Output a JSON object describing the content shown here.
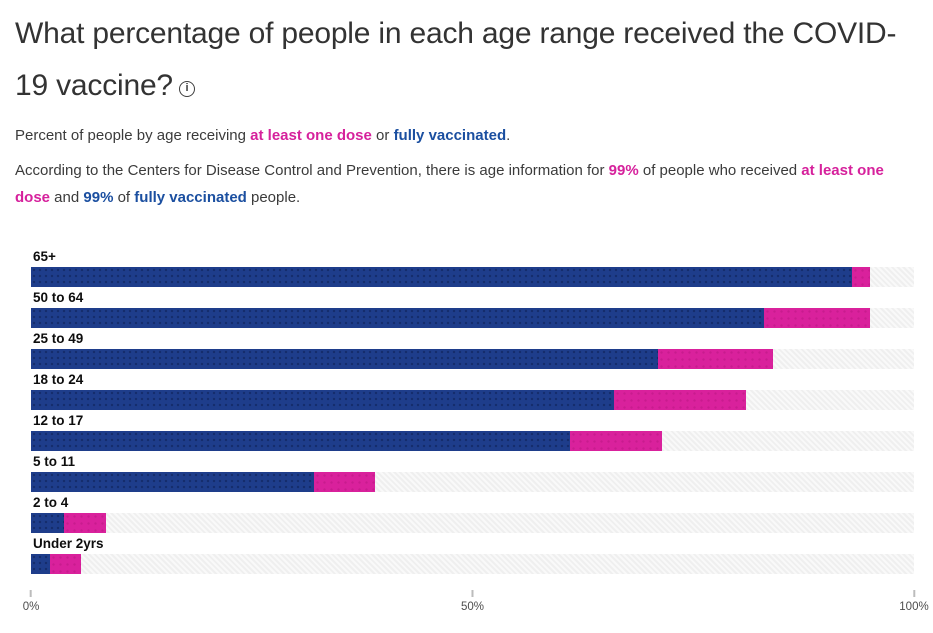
{
  "header": {
    "title": "What percentage of people in each age range received the COVID-19 vaccine?",
    "info_glyph": "i"
  },
  "subtitle": {
    "pre": "Percent of people by age receiving ",
    "one_dose_term": "at least one dose",
    "mid": " or ",
    "fully_term": "fully vaccinated",
    "end": "."
  },
  "description": {
    "pre": "According to the Centers for Disease Control and Prevention, there is age information for ",
    "pct_one_dose": "99%",
    "mid1": " of people who received ",
    "one_dose_term": "at least one dose",
    "mid2": " and ",
    "pct_fully": "99%",
    "mid3": " of ",
    "fully_term": "fully vaccinated",
    "end": " people."
  },
  "colors": {
    "bar_navy": "#1e3d8b",
    "bar_pink": "#d9219c",
    "text_pink": "#d6219c",
    "text_navy": "#1b4fa0",
    "track_gray": "#efefef"
  },
  "chart_data": {
    "type": "bar",
    "orientation": "horizontal",
    "stacked": true,
    "grid": false,
    "legend_position": "none",
    "categories": [
      "65+",
      "50 to 64",
      "25 to 49",
      "18 to 24",
      "12 to 17",
      "5 to 11",
      "2 to 4",
      "Under 2yrs"
    ],
    "series": [
      {
        "name": "fully vaccinated",
        "color": "#1e3d8b",
        "values": [
          93,
          83,
          71,
          66,
          61,
          32,
          3.7,
          2.2
        ]
      },
      {
        "name": "at least one dose (cumulative)",
        "color": "#d9219c",
        "values": [
          95,
          95,
          84,
          81,
          71.5,
          39,
          8.5,
          5.7
        ]
      }
    ],
    "xlim": [
      0,
      100
    ],
    "x_ticks": [
      {
        "label": "0%",
        "value": 0
      },
      {
        "label": "50%",
        "value": 50
      },
      {
        "label": "100%",
        "value": 100
      }
    ]
  }
}
